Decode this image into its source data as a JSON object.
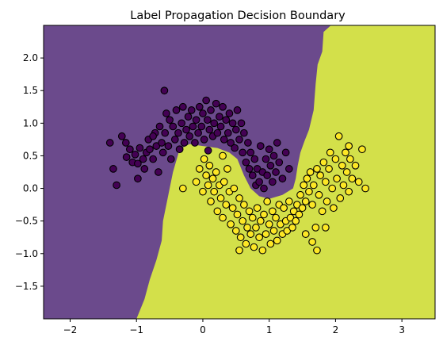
{
  "chart_data": {
    "type": "scatter",
    "title": "Label Propagation Decision Boundary",
    "xlim": [
      -2.4,
      3.5
    ],
    "ylim": [
      -2.0,
      2.5
    ],
    "xticks": [
      -2,
      -1,
      0,
      1,
      2,
      3
    ],
    "yticks": [
      -1.5,
      -1.0,
      -0.5,
      0.0,
      0.5,
      1.0,
      1.5,
      2.0
    ],
    "xtick_labels": [
      "−2",
      "−1",
      "0",
      "1",
      "2",
      "3"
    ],
    "ytick_labels": [
      "−1.5",
      "−1.0",
      "−0.5",
      "0.0",
      "0.5",
      "1.0",
      "1.5",
      "2.0"
    ],
    "grid": false,
    "colors": {
      "class_0_region": "#6b4a8c",
      "class_1_region": "#d3e04a",
      "class_0_point": "#440154",
      "class_1_point": "#fde725",
      "point_edge": "#000000"
    },
    "decision_boundary": [
      [
        1.93,
        2.5
      ],
      [
        1.82,
        2.4
      ],
      [
        1.8,
        2.1
      ],
      [
        1.73,
        1.9
      ],
      [
        1.7,
        1.6
      ],
      [
        1.67,
        1.2
      ],
      [
        1.6,
        0.9
      ],
      [
        1.53,
        0.72
      ],
      [
        1.47,
        0.55
      ],
      [
        1.43,
        0.35
      ],
      [
        1.4,
        0.15
      ],
      [
        1.36,
        0.0
      ],
      [
        1.2,
        -0.1
      ],
      [
        1.0,
        -0.16
      ],
      [
        0.85,
        -0.12
      ],
      [
        0.72,
        0.0
      ],
      [
        0.62,
        0.2
      ],
      [
        0.52,
        0.45
      ],
      [
        0.4,
        0.55
      ],
      [
        0.22,
        0.62
      ],
      [
        0.0,
        0.65
      ],
      [
        -0.2,
        0.68
      ],
      [
        -0.35,
        0.6
      ],
      [
        -0.45,
        0.25
      ],
      [
        -0.5,
        0.0
      ],
      [
        -0.55,
        -0.25
      ],
      [
        -0.6,
        -0.5
      ],
      [
        -0.62,
        -0.8
      ],
      [
        -0.7,
        -1.1
      ],
      [
        -0.8,
        -1.4
      ],
      [
        -0.88,
        -1.7
      ],
      [
        -1.0,
        -2.0
      ]
    ],
    "series": [
      {
        "values": [
          [
            -1.4,
            0.7
          ],
          [
            -1.22,
            0.8
          ],
          [
            -1.16,
            0.7
          ],
          [
            -1.15,
            0.48
          ],
          [
            -1.1,
            0.6
          ],
          [
            -1.06,
            0.4
          ],
          [
            -1.02,
            0.52
          ],
          [
            -0.98,
            0.38
          ],
          [
            -0.95,
            0.62
          ],
          [
            -0.9,
            0.45
          ],
          [
            -0.88,
            0.3
          ],
          [
            -0.85,
            0.55
          ],
          [
            -0.82,
            0.75
          ],
          [
            -0.8,
            0.6
          ],
          [
            -0.75,
            0.45
          ],
          [
            -0.72,
            0.85
          ],
          [
            -0.7,
            0.65
          ],
          [
            -0.67,
            0.25
          ],
          [
            -0.65,
            0.95
          ],
          [
            -0.62,
            0.7
          ],
          [
            -0.6,
            0.55
          ],
          [
            -0.57,
            0.85
          ],
          [
            -0.55,
            1.15
          ],
          [
            -0.52,
            0.65
          ],
          [
            -0.5,
            1.05
          ],
          [
            -0.48,
            0.45
          ],
          [
            -0.45,
            0.95
          ],
          [
            -0.42,
            0.75
          ],
          [
            -0.4,
            1.2
          ],
          [
            -0.37,
            0.85
          ],
          [
            -0.35,
            0.6
          ],
          [
            -0.32,
            1.0
          ],
          [
            -0.3,
            1.25
          ],
          [
            -0.28,
            0.7
          ],
          [
            -0.25,
            0.9
          ],
          [
            -0.22,
            1.1
          ],
          [
            -0.2,
            0.8
          ],
          [
            -0.17,
            1.2
          ],
          [
            -0.15,
            0.95
          ],
          [
            -0.12,
            0.7
          ],
          [
            -0.1,
            1.05
          ],
          [
            -0.07,
            0.85
          ],
          [
            -0.05,
            1.25
          ],
          [
            -0.02,
            0.95
          ],
          [
            0.0,
            1.15
          ],
          [
            0.02,
            0.75
          ],
          [
            0.05,
            1.35
          ],
          [
            0.07,
            1.05
          ],
          [
            0.1,
            0.9
          ],
          [
            0.12,
            1.2
          ],
          [
            0.15,
            0.8
          ],
          [
            0.17,
            1.0
          ],
          [
            0.2,
            1.3
          ],
          [
            0.22,
            0.85
          ],
          [
            0.25,
            1.1
          ],
          [
            0.27,
            0.95
          ],
          [
            0.3,
            1.25
          ],
          [
            0.32,
            0.75
          ],
          [
            0.35,
            1.05
          ],
          [
            0.38,
            0.85
          ],
          [
            0.4,
            1.15
          ],
          [
            0.42,
            0.7
          ],
          [
            0.45,
            1.0
          ],
          [
            0.48,
            0.62
          ],
          [
            0.5,
            0.9
          ],
          [
            0.52,
            1.2
          ],
          [
            0.55,
            0.75
          ],
          [
            0.58,
            1.0
          ],
          [
            0.6,
            0.55
          ],
          [
            0.62,
            0.85
          ],
          [
            0.65,
            0.4
          ],
          [
            0.68,
            0.7
          ],
          [
            0.7,
            0.3
          ],
          [
            0.72,
            0.55
          ],
          [
            0.75,
            0.2
          ],
          [
            0.78,
            0.45
          ],
          [
            0.8,
            0.05
          ],
          [
            0.82,
            0.3
          ],
          [
            0.85,
            0.1
          ],
          [
            0.87,
            0.65
          ],
          [
            0.9,
            0.25
          ],
          [
            0.92,
            0.0
          ],
          [
            0.95,
            0.45
          ],
          [
            0.97,
            0.2
          ],
          [
            1.0,
            0.6
          ],
          [
            1.02,
            0.35
          ],
          [
            1.05,
            0.1
          ],
          [
            1.07,
            0.5
          ],
          [
            1.1,
            0.25
          ],
          [
            1.12,
            0.7
          ],
          [
            1.15,
            0.4
          ],
          [
            1.2,
            0.15
          ],
          [
            1.25,
            0.55
          ],
          [
            1.3,
            0.3
          ],
          [
            -1.35,
            0.3
          ],
          [
            -1.3,
            0.05
          ],
          [
            -0.98,
            0.15
          ],
          [
            -0.75,
            0.8
          ],
          [
            0.08,
            0.58
          ],
          [
            -0.58,
            1.5
          ]
        ]
      },
      {
        "values": [
          [
            -0.1,
            0.1
          ],
          [
            -0.05,
            0.3
          ],
          [
            0.0,
            -0.05
          ],
          [
            0.02,
            0.45
          ],
          [
            0.05,
            0.2
          ],
          [
            0.08,
            0.05
          ],
          [
            0.1,
            0.35
          ],
          [
            0.12,
            -0.2
          ],
          [
            0.15,
            0.15
          ],
          [
            0.17,
            -0.05
          ],
          [
            0.2,
            0.25
          ],
          [
            0.22,
            -0.35
          ],
          [
            0.25,
            0.05
          ],
          [
            0.27,
            -0.15
          ],
          [
            0.3,
            -0.45
          ],
          [
            0.32,
            0.1
          ],
          [
            0.35,
            -0.25
          ],
          [
            0.37,
            0.3
          ],
          [
            0.4,
            -0.05
          ],
          [
            0.42,
            -0.55
          ],
          [
            0.45,
            -0.3
          ],
          [
            0.47,
            0.0
          ],
          [
            0.5,
            -0.65
          ],
          [
            0.52,
            -0.4
          ],
          [
            0.55,
            -0.15
          ],
          [
            0.57,
            -0.75
          ],
          [
            0.6,
            -0.5
          ],
          [
            0.62,
            -0.25
          ],
          [
            0.65,
            -0.85
          ],
          [
            0.67,
            -0.6
          ],
          [
            0.7,
            -0.35
          ],
          [
            0.72,
            -0.7
          ],
          [
            0.75,
            -0.45
          ],
          [
            0.77,
            -0.9
          ],
          [
            0.8,
            -0.6
          ],
          [
            0.82,
            -0.3
          ],
          [
            0.85,
            -0.75
          ],
          [
            0.87,
            -0.5
          ],
          [
            0.9,
            -0.95
          ],
          [
            0.92,
            -0.4
          ],
          [
            0.95,
            -0.7
          ],
          [
            0.97,
            -0.2
          ],
          [
            1.0,
            -0.55
          ],
          [
            1.02,
            -0.85
          ],
          [
            1.05,
            -0.35
          ],
          [
            1.07,
            -0.65
          ],
          [
            1.1,
            -0.45
          ],
          [
            1.12,
            -0.8
          ],
          [
            1.15,
            -0.25
          ],
          [
            1.17,
            -0.55
          ],
          [
            1.2,
            -0.7
          ],
          [
            1.22,
            -0.3
          ],
          [
            1.25,
            -0.5
          ],
          [
            1.27,
            -0.65
          ],
          [
            1.3,
            -0.2
          ],
          [
            1.32,
            -0.45
          ],
          [
            1.35,
            -0.6
          ],
          [
            1.37,
            -0.35
          ],
          [
            1.4,
            -0.5
          ],
          [
            1.42,
            -0.25
          ],
          [
            1.45,
            -0.4
          ],
          [
            1.47,
            -0.1
          ],
          [
            1.5,
            -0.3
          ],
          [
            1.52,
            0.05
          ],
          [
            1.55,
            -0.2
          ],
          [
            1.57,
            0.15
          ],
          [
            1.6,
            -0.05
          ],
          [
            1.62,
            0.25
          ],
          [
            1.65,
            -0.25
          ],
          [
            1.67,
            0.05
          ],
          [
            1.7,
            -0.6
          ],
          [
            1.72,
            0.3
          ],
          [
            1.75,
            -0.1
          ],
          [
            1.77,
            0.2
          ],
          [
            1.8,
            -0.35
          ],
          [
            1.82,
            0.4
          ],
          [
            1.85,
            0.1
          ],
          [
            1.87,
            -0.2
          ],
          [
            1.9,
            0.3
          ],
          [
            1.92,
            0.55
          ],
          [
            1.95,
            0.0
          ],
          [
            1.97,
            -0.3
          ],
          [
            2.0,
            0.45
          ],
          [
            2.02,
            0.15
          ],
          [
            2.05,
            0.8
          ],
          [
            2.07,
            -0.15
          ],
          [
            2.1,
            0.35
          ],
          [
            2.12,
            0.05
          ],
          [
            2.15,
            0.55
          ],
          [
            2.17,
            0.25
          ],
          [
            2.2,
            -0.05
          ],
          [
            2.22,
            0.45
          ],
          [
            2.25,
            0.15
          ],
          [
            2.3,
            0.35
          ],
          [
            2.35,
            0.1
          ],
          [
            2.4,
            0.6
          ],
          [
            2.45,
            0.0
          ],
          [
            2.2,
            0.65
          ],
          [
            1.72,
            -0.95
          ],
          [
            1.85,
            -0.6
          ],
          [
            1.55,
            -0.7
          ],
          [
            1.65,
            -0.82
          ],
          [
            0.3,
            0.5
          ],
          [
            -0.3,
            0.0
          ],
          [
            0.55,
            -0.95
          ]
        ]
      }
    ]
  }
}
